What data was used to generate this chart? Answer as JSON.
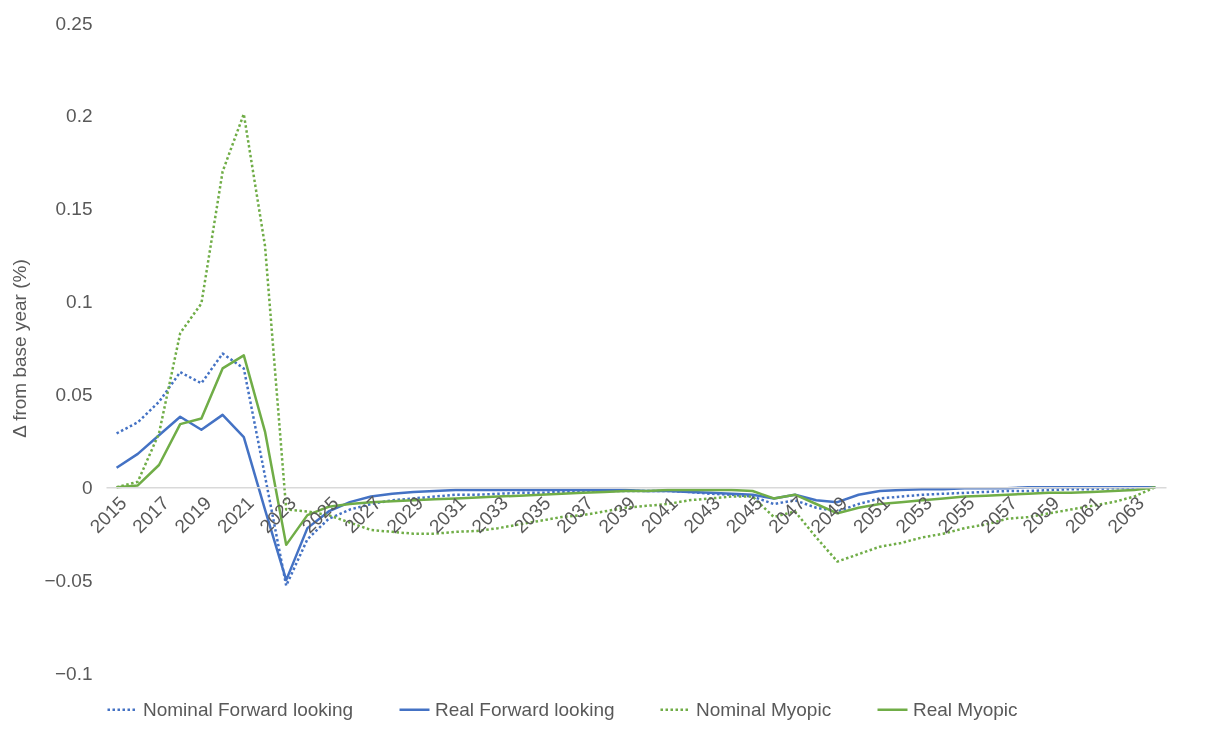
{
  "chart_data": {
    "type": "line",
    "ylabel": "Δ from base year (%)",
    "categories": [
      "2015",
      null,
      "2017",
      null,
      "2019",
      null,
      "2021",
      null,
      "2023",
      null,
      "2025",
      null,
      "2027",
      null,
      "2029",
      null,
      "2031",
      null,
      "2033",
      null,
      "2035",
      null,
      "2037",
      null,
      "2039",
      null,
      "2041",
      null,
      "2043",
      null,
      "2045",
      null,
      "2047",
      null,
      "2049",
      null,
      "2051",
      null,
      "2053",
      null,
      "2055",
      null,
      "2057",
      null,
      "2059",
      null,
      "2061",
      null,
      "2063",
      null
    ],
    "series": [
      {
        "name": "Nominal Forward looking",
        "color": "#4472c4",
        "line_style": "dotted",
        "values": [
          0.029,
          0.035,
          0.046,
          0.062,
          0.056,
          0.072,
          0.064,
          0.006,
          -0.053,
          -0.028,
          -0.017,
          -0.012,
          -0.009,
          -0.007,
          -0.006,
          -0.005,
          -0.004,
          -0.004,
          -0.0035,
          -0.003,
          -0.003,
          -0.0025,
          -0.0025,
          -0.002,
          -0.002,
          -0.002,
          -0.002,
          -0.0025,
          -0.0035,
          -0.004,
          -0.005,
          -0.009,
          -0.007,
          -0.011,
          -0.013,
          -0.009,
          -0.006,
          -0.005,
          -0.004,
          -0.0035,
          -0.003,
          -0.0025,
          -0.002,
          -0.002,
          -0.0015,
          -0.001,
          -0.001,
          -0.0005,
          -0.0005,
          0
        ]
      },
      {
        "name": "Real Forward looking",
        "color": "#4472c4",
        "line_style": "solid",
        "values": [
          0.0105,
          0.018,
          0.028,
          0.038,
          0.031,
          0.039,
          0.027,
          -0.012,
          -0.05,
          -0.022,
          -0.013,
          -0.008,
          -0.005,
          -0.0035,
          -0.0025,
          -0.002,
          -0.0015,
          -0.0015,
          -0.0015,
          -0.0015,
          -0.0015,
          -0.0015,
          -0.0015,
          -0.0015,
          -0.0015,
          -0.002,
          -0.002,
          -0.0025,
          -0.003,
          -0.0035,
          -0.004,
          -0.006,
          -0.004,
          -0.007,
          -0.008,
          -0.004,
          -0.002,
          -0.0015,
          -0.001,
          -0.001,
          -0.0005,
          -0.0005,
          -0.0005,
          0,
          0,
          0,
          0,
          0,
          0,
          0
        ]
      },
      {
        "name": "Nominal Myopic",
        "color": "#70ad47",
        "line_style": "dotted",
        "values": [
          0,
          0.003,
          0.029,
          0.083,
          0.099,
          0.17,
          0.201,
          0.13,
          -0.012,
          -0.013,
          -0.015,
          -0.019,
          -0.023,
          -0.024,
          -0.025,
          -0.025,
          -0.024,
          -0.0235,
          -0.022,
          -0.02,
          -0.018,
          -0.016,
          -0.015,
          -0.013,
          -0.011,
          -0.01,
          -0.009,
          -0.007,
          -0.006,
          -0.005,
          -0.005,
          -0.016,
          -0.013,
          -0.027,
          -0.04,
          -0.036,
          -0.032,
          -0.03,
          -0.027,
          -0.025,
          -0.022,
          -0.02,
          -0.017,
          -0.016,
          -0.014,
          -0.012,
          -0.01,
          -0.008,
          -0.005,
          0
        ]
      },
      {
        "name": "Real Myopic",
        "color": "#70ad47",
        "line_style": "solid",
        "values": [
          0,
          0.001,
          0.012,
          0.034,
          0.037,
          0.064,
          0.071,
          0.03,
          -0.031,
          -0.015,
          -0.0105,
          -0.009,
          -0.008,
          -0.0075,
          -0.007,
          -0.0065,
          -0.006,
          -0.0055,
          -0.005,
          -0.0045,
          -0.004,
          -0.0035,
          -0.003,
          -0.0025,
          -0.002,
          -0.002,
          -0.0015,
          -0.0015,
          -0.0015,
          -0.0015,
          -0.002,
          -0.006,
          -0.004,
          -0.009,
          -0.014,
          -0.011,
          -0.009,
          -0.008,
          -0.007,
          -0.006,
          -0.005,
          -0.0045,
          -0.004,
          -0.0035,
          -0.003,
          -0.003,
          -0.0025,
          -0.002,
          -0.0015,
          0
        ]
      }
    ],
    "ylim": [
      -0.1,
      0.25
    ],
    "yticks": [
      -0.1,
      -0.05,
      0,
      0.05,
      0.1,
      0.15,
      0.2,
      0.25
    ],
    "grid": false,
    "legend": "bottom"
  }
}
